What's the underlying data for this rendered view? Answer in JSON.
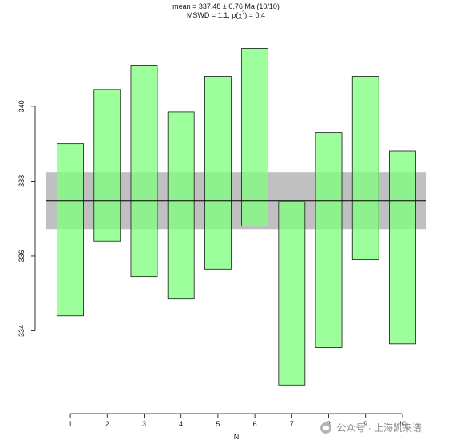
{
  "chart_data": {
    "type": "bar",
    "subtype": "uncertainty-box",
    "title_line1": "mean = 337.48 ± 0.76 Ma  (10/10)",
    "title_line2_prefix": "MSWD = 1.1, p(χ",
    "title_line2_sup": "2",
    "title_line2_suffix": ") = 0.4",
    "xlabel": "N",
    "ylabel": "",
    "categories": [
      "1",
      "2",
      "3",
      "4",
      "5",
      "6",
      "7",
      "8",
      "9",
      "10"
    ],
    "intervals": [
      {
        "n": 1,
        "low": 334.4,
        "high": 339.0
      },
      {
        "n": 2,
        "low": 336.4,
        "high": 340.45
      },
      {
        "n": 3,
        "low": 335.45,
        "high": 341.1
      },
      {
        "n": 4,
        "low": 334.85,
        "high": 339.85
      },
      {
        "n": 5,
        "low": 335.65,
        "high": 340.8
      },
      {
        "n": 6,
        "low": 336.8,
        "high": 341.55
      },
      {
        "n": 7,
        "low": 332.55,
        "high": 337.45
      },
      {
        "n": 8,
        "low": 333.55,
        "high": 339.3
      },
      {
        "n": 9,
        "low": 335.9,
        "high": 340.8
      },
      {
        "n": 10,
        "low": 333.65,
        "high": 338.8
      }
    ],
    "mean": 337.48,
    "band": [
      336.72,
      338.24
    ],
    "ylim": [
      332.0,
      342.2
    ],
    "yticks": [
      334,
      336,
      338,
      340
    ],
    "xlim": [
      0.35,
      10.65
    ],
    "grid": false,
    "colors": {
      "box_fill": "#80ff80",
      "box_stroke": "#1a1a1a",
      "band_fill": "#8c8c8c",
      "mean_line": "#000000",
      "axis": "#000000"
    }
  },
  "watermark": {
    "text": "公众号 · 上海凯来谱"
  }
}
